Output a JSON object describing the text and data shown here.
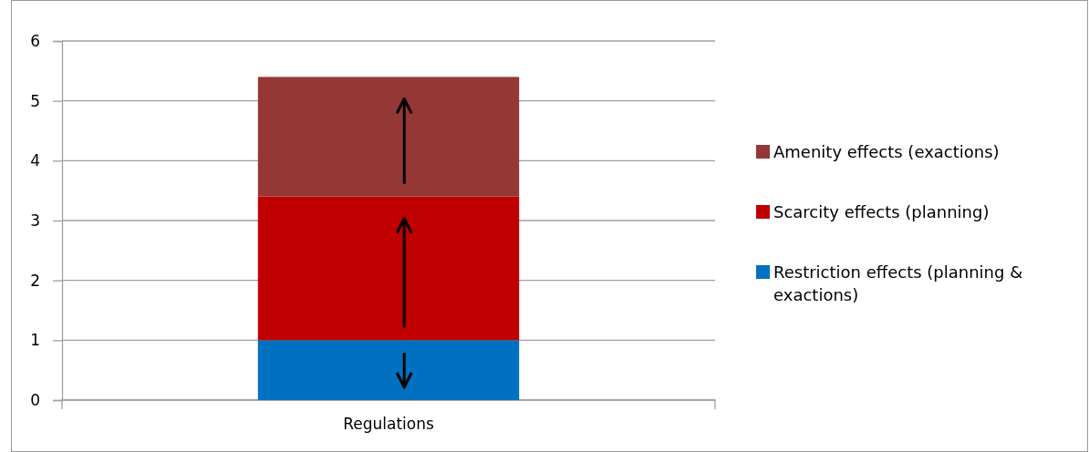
{
  "chart_data": {
    "type": "bar",
    "stacked": true,
    "categories": [
      "Regulations"
    ],
    "series": [
      {
        "name": "Restriction effects (planning & exactions)",
        "color": "#0070c0",
        "values": [
          1
        ]
      },
      {
        "name": "Scarcity effects (planning)",
        "color": "#c00000",
        "values": [
          2.4
        ]
      },
      {
        "name": "Amenity effects (exactions)",
        "color": "#953735",
        "values": [
          2
        ]
      }
    ],
    "ylim": [
      0,
      6
    ],
    "yticks": [
      0,
      1,
      2,
      3,
      4,
      5,
      6
    ],
    "grid": "y",
    "legend": "right"
  }
}
